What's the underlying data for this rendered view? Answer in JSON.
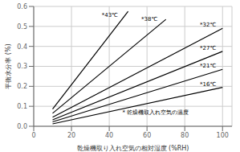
{
  "chart_data": {
    "type": "line",
    "xlabel": "乾燥機取り入れ空気の相対湿度 (%RH)",
    "ylabel": "平衡水分率 (%)",
    "xlim": [
      0,
      105
    ],
    "ylim": [
      0,
      0.6
    ],
    "xticks": [
      0,
      20,
      40,
      60,
      80,
      100
    ],
    "yticks": [
      {
        "value": 0,
        "label": "0.0"
      },
      0.1,
      0.2,
      0.3,
      0.4,
      0.5,
      0.6
    ],
    "grid": true,
    "color": "#000000",
    "series": [
      {
        "x": [
          10,
          50
        ],
        "values": [
          0.086,
          0.575
        ]
      },
      {
        "x": [
          10,
          70
        ],
        "values": [
          0.065,
          0.535
        ]
      },
      {
        "x": [
          10,
          100
        ],
        "values": [
          0.045,
          0.49
        ]
      },
      {
        "x": [
          10,
          100
        ],
        "values": [
          0.032,
          0.375
        ]
      },
      {
        "x": [
          10,
          100
        ],
        "values": [
          0.022,
          0.285
        ]
      },
      {
        "x": [
          10,
          100
        ],
        "values": [
          0.012,
          0.195
        ]
      }
    ],
    "annotations": [
      {
        "text": "*43℃",
        "x": 36,
        "y": 0.545
      },
      {
        "text": "*38℃",
        "x": 57,
        "y": 0.525
      },
      {
        "text": "*32℃",
        "x": 88,
        "y": 0.495
      },
      {
        "text": "*27℃",
        "x": 88,
        "y": 0.378
      },
      {
        "text": "*21℃",
        "x": 88,
        "y": 0.288
      },
      {
        "text": "*16℃",
        "x": 88,
        "y": 0.198
      },
      {
        "text": "* 乾燥機取入れ空気の温度",
        "x": 47,
        "y": 0.055
      }
    ]
  }
}
